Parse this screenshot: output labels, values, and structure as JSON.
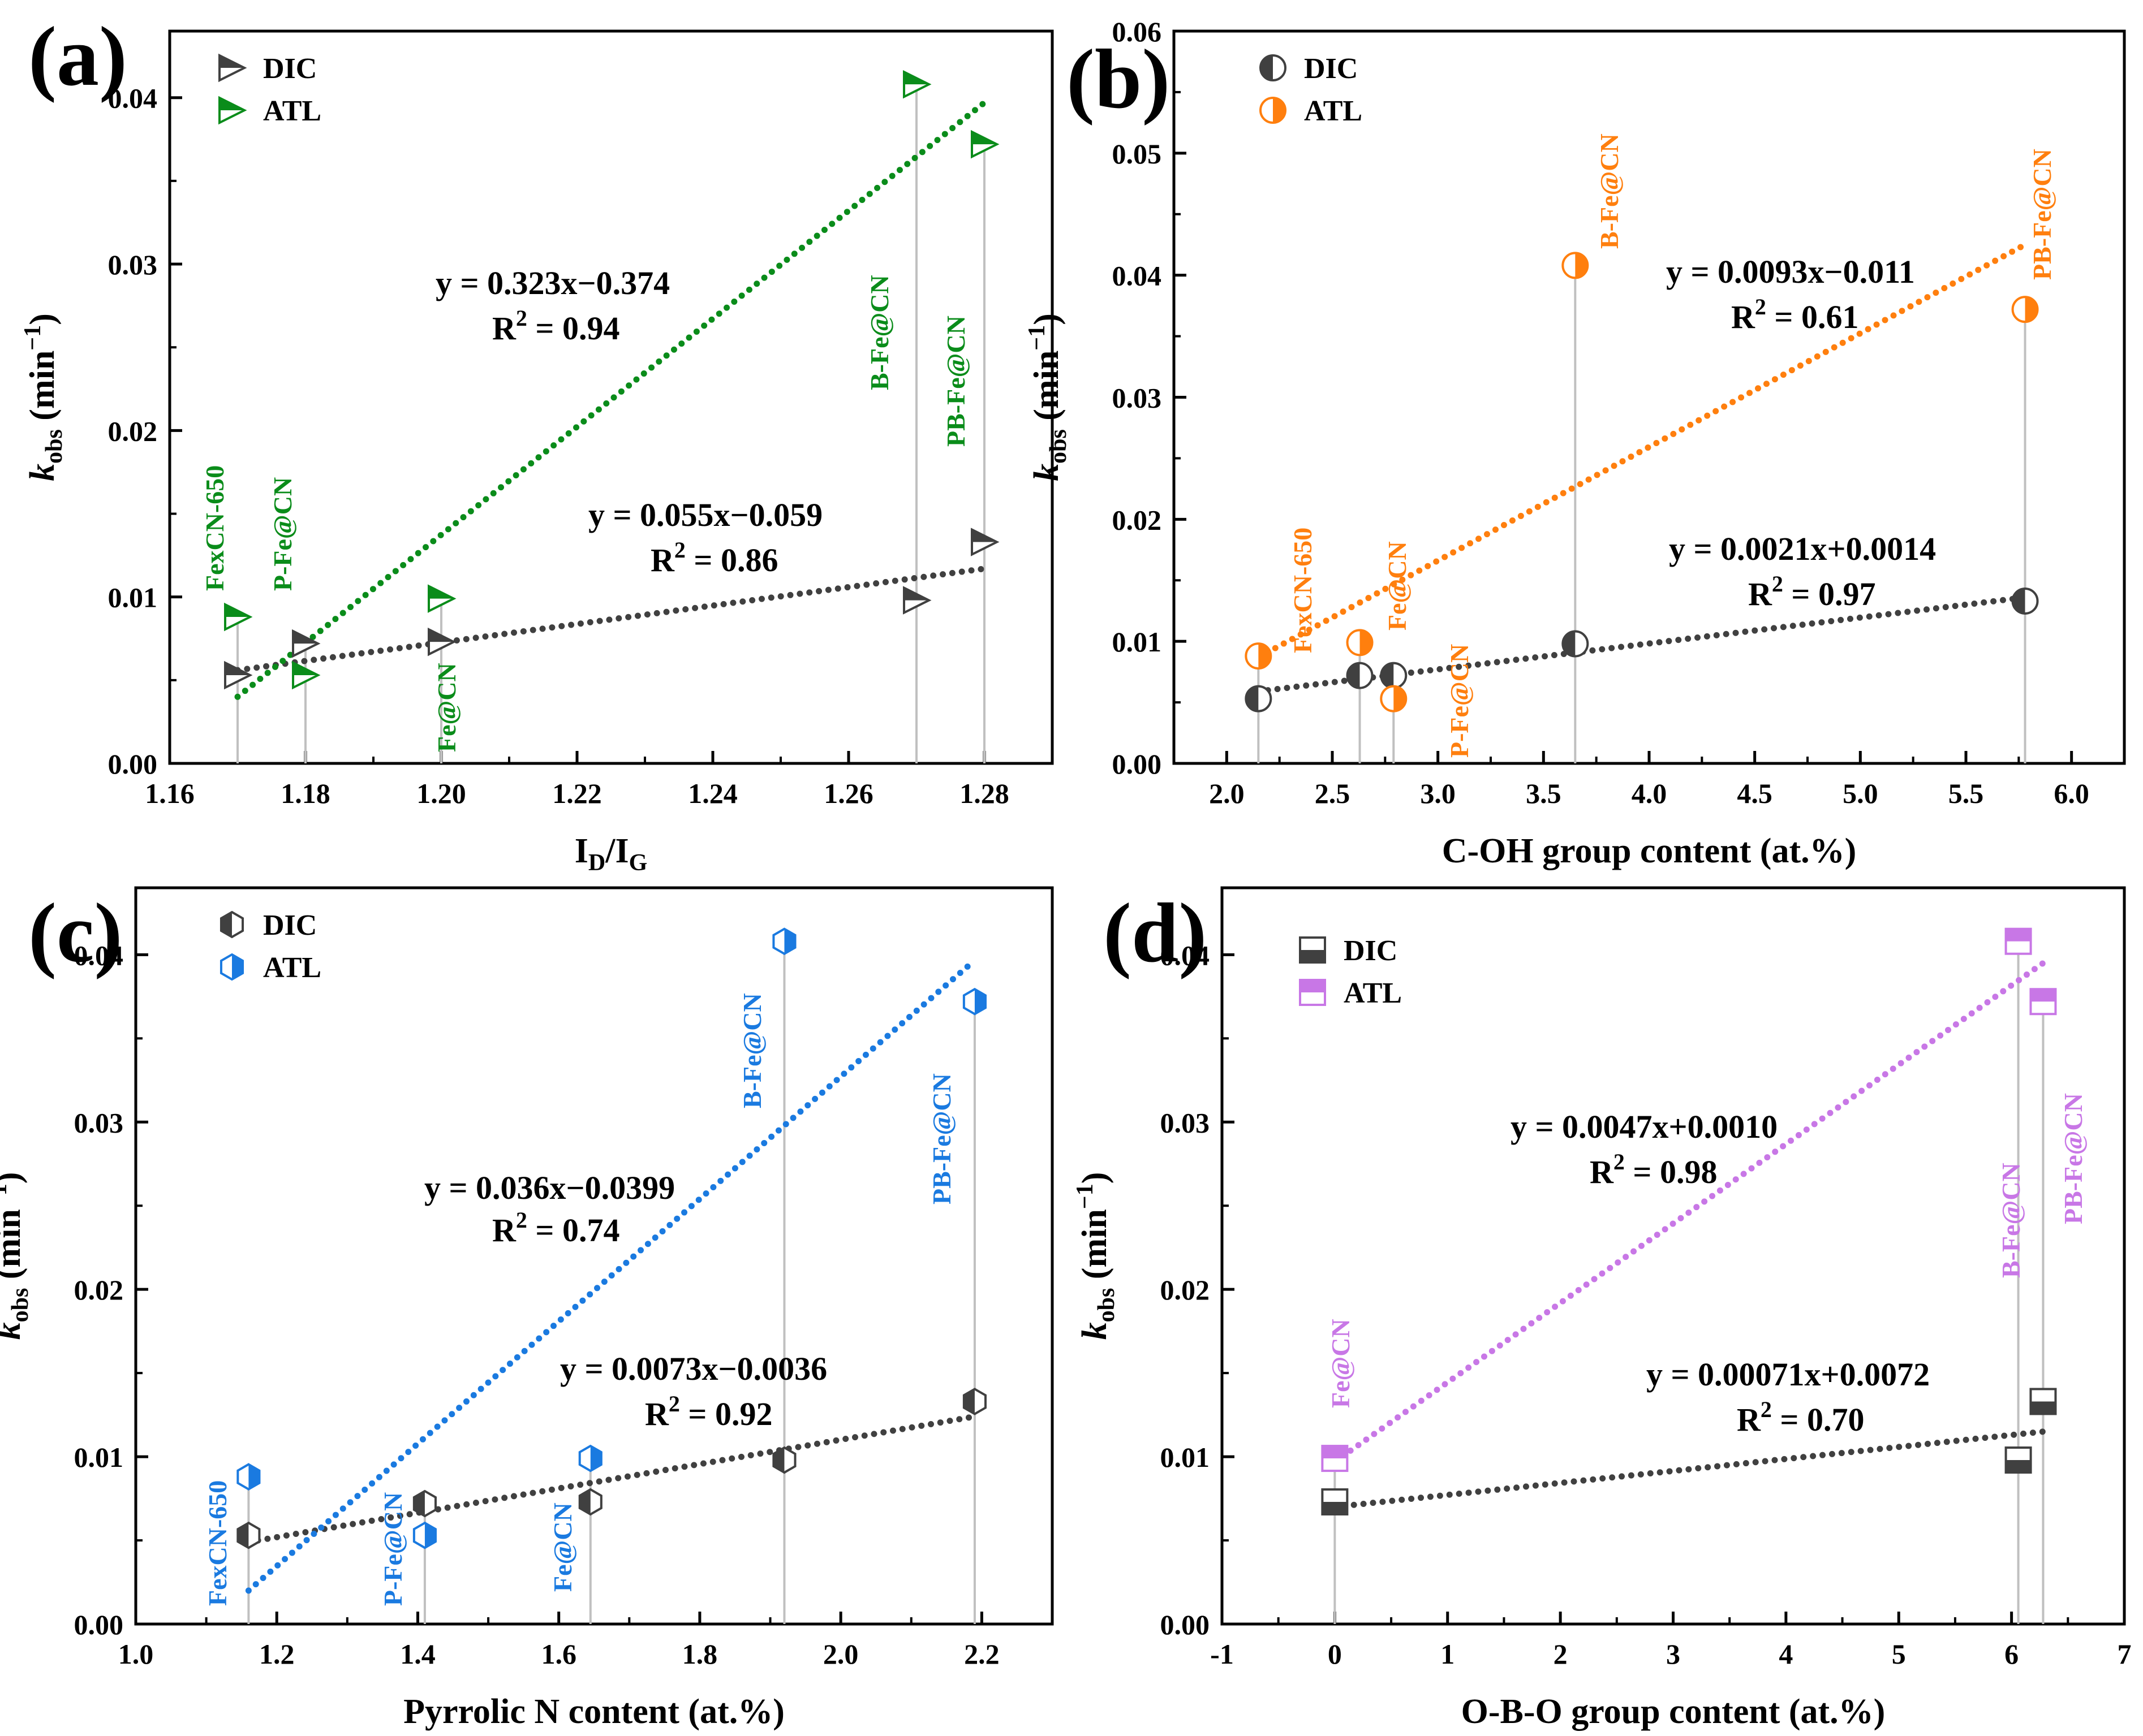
{
  "colors": {
    "DIC": "#404040",
    "ATL_a": "#0a8c1a",
    "ATL_b": "#ff7f0e",
    "ATL_c": "#1a7ae0",
    "ATL_d": "#c877e6",
    "stem": "#c0c0c0",
    "axis": "#000000"
  },
  "chart_data": [
    {
      "panel": "(a)",
      "type": "scatter",
      "xlabel_main": "I",
      "xlabel_sub1": "D",
      "xlabel_mid": "/I",
      "xlabel_sub2": "G",
      "ylabel_main": "k",
      "ylabel_sub": "obs",
      "ylabel_unit": " (min",
      "ylabel_sup": "−1",
      "ylabel_close": ")",
      "xlim": [
        1.16,
        1.29
      ],
      "ylim": [
        0,
        0.044
      ],
      "xticks": [
        1.16,
        1.18,
        1.2,
        1.22,
        1.24,
        1.26,
        1.28
      ],
      "xtick_labels": [
        "1.16",
        "1.18",
        "1.20",
        "1.22",
        "1.24",
        "1.26",
        "1.28"
      ],
      "yticks": [
        0,
        0.01,
        0.02,
        0.03,
        0.04
      ],
      "ytick_labels": [
        "0.00",
        "0.01",
        "0.02",
        "0.03",
        "0.04"
      ],
      "marker": "triangle",
      "legend": [
        "DIC",
        "ATL"
      ],
      "series": [
        {
          "name": "DIC",
          "x": [
            1.17,
            1.18,
            1.2,
            1.27,
            1.28
          ],
          "y": [
            0.0053,
            0.0072,
            0.0073,
            0.0098,
            0.0133
          ]
        },
        {
          "name": "ATL",
          "x": [
            1.17,
            1.18,
            1.2,
            1.27,
            1.28
          ],
          "y": [
            0.0088,
            0.0053,
            0.0099,
            0.0408,
            0.0372
          ]
        }
      ],
      "fits": [
        {
          "series": "DIC",
          "x": [
            1.17,
            1.28
          ],
          "y": [
            0.0056,
            0.0117
          ]
        },
        {
          "series": "ATL",
          "x": [
            1.17,
            1.28
          ],
          "y": [
            0.004,
            0.0397
          ]
        }
      ],
      "equations": [
        {
          "eq": "y = 0.323x−0.374",
          "r2_lead": "R",
          "r2_sup": "2",
          "r2_rest": " = 0.94",
          "color": "black"
        },
        {
          "eq": "y = 0.055x−0.059",
          "r2_lead": "R",
          "r2_sup": "2",
          "r2_rest": " = 0.86",
          "color": "black"
        }
      ],
      "labels": [
        "FexCN-650",
        "P-Fe@CN",
        "Fe@CN",
        "B-Fe@CN",
        "PB-Fe@CN"
      ]
    },
    {
      "panel": "(b)",
      "type": "scatter",
      "xlabel": "C-OH group content (at.%)",
      "ylabel_main": "k",
      "ylabel_sub": "obs",
      "ylabel_unit": " (min",
      "ylabel_sup": "−1",
      "ylabel_close": ")",
      "xlim": [
        1.75,
        6.25
      ],
      "ylim": [
        0,
        0.06
      ],
      "xticks": [
        2,
        2.5,
        3,
        3.5,
        4,
        4.5,
        5,
        5.5,
        6
      ],
      "xtick_labels": [
        "2.0",
        "2.5",
        "3.0",
        "3.5",
        "4.0",
        "4.5",
        "5.0",
        "5.5",
        "6.0"
      ],
      "yticks": [
        0,
        0.01,
        0.02,
        0.03,
        0.04,
        0.05,
        0.06
      ],
      "ytick_labels": [
        "0.00",
        "0.01",
        "0.02",
        "0.03",
        "0.04",
        "0.05",
        "0.06"
      ],
      "marker": "circle",
      "legend": [
        "DIC",
        "ATL"
      ],
      "series": [
        {
          "name": "DIC",
          "x": [
            2.15,
            2.63,
            2.79,
            3.65,
            5.78
          ],
          "y": [
            0.0053,
            0.0072,
            0.0072,
            0.0098,
            0.0133
          ]
        },
        {
          "name": "ATL",
          "x": [
            2.15,
            2.63,
            2.79,
            3.65,
            5.78
          ],
          "y": [
            0.0088,
            0.0099,
            0.0053,
            0.0408,
            0.0372
          ]
        }
      ],
      "fits": [
        {
          "series": "DIC",
          "x": [
            2.15,
            5.78
          ],
          "y": [
            0.0059,
            0.0136
          ]
        },
        {
          "series": "ATL",
          "x": [
            2.15,
            5.78
          ],
          "y": [
            0.0087,
            0.0425
          ]
        }
      ],
      "equations": [
        {
          "eq": "y = 0.0093x−0.011",
          "r2_lead": "R",
          "r2_sup": "2",
          "r2_rest": " = 0.61",
          "color": "black"
        },
        {
          "eq": "y = 0.0021x+0.0014",
          "r2_lead": "R",
          "r2_sup": "2",
          "r2_rest": " = 0.97",
          "color": "black"
        }
      ],
      "labels": [
        "FexCN-650",
        "Fe@CN",
        "P-Fe@CN",
        "B-Fe@CN",
        "PB-Fe@CN"
      ]
    },
    {
      "panel": "(c)",
      "type": "scatter",
      "xlabel": "Pyrrolic N content (at.%)",
      "ylabel_main": "k",
      "ylabel_sub": "obs",
      "ylabel_unit": " (min",
      "ylabel_sup": "−1",
      "ylabel_close": ")",
      "xlim": [
        1.0,
        2.3
      ],
      "ylim": [
        0,
        0.044
      ],
      "xticks": [
        1.0,
        1.2,
        1.4,
        1.6,
        1.8,
        2.0,
        2.2
      ],
      "xtick_labels": [
        "1.0",
        "1.2",
        "1.4",
        "1.6",
        "1.8",
        "2.0",
        "2.2"
      ],
      "yticks": [
        0,
        0.01,
        0.02,
        0.03,
        0.04
      ],
      "ytick_labels": [
        "0.00",
        "0.01",
        "0.02",
        "0.03",
        "0.04"
      ],
      "marker": "hexagon",
      "legend": [
        "DIC",
        "ATL"
      ],
      "series": [
        {
          "name": "DIC",
          "x": [
            1.16,
            1.41,
            1.645,
            1.92,
            2.19
          ],
          "y": [
            0.0053,
            0.0072,
            0.0073,
            0.0098,
            0.0133
          ]
        },
        {
          "name": "ATL",
          "x": [
            1.16,
            1.41,
            1.645,
            1.92,
            2.19
          ],
          "y": [
            0.0088,
            0.0053,
            0.0099,
            0.0408,
            0.0372
          ]
        }
      ],
      "fits": [
        {
          "series": "DIC",
          "x": [
            1.16,
            2.19
          ],
          "y": [
            0.0049,
            0.0124
          ]
        },
        {
          "series": "ATL",
          "x": [
            1.16,
            2.18
          ],
          "y": [
            0.002,
            0.0393
          ]
        }
      ],
      "equations": [
        {
          "eq": "y = 0.036x−0.0399",
          "r2_lead": "R",
          "r2_sup": "2",
          "r2_rest": " = 0.74",
          "color": "black"
        },
        {
          "eq": "y = 0.0073x−0.0036",
          "r2_lead": "R",
          "r2_sup": "2",
          "r2_rest": " = 0.92",
          "color": "black"
        }
      ],
      "labels": [
        "FexCN-650",
        "P-Fe@CN",
        "Fe@CN",
        "B-Fe@CN",
        "PB-Fe@CN"
      ]
    },
    {
      "panel": "(d)",
      "type": "scatter",
      "xlabel": "O-B-O group content (at.%)",
      "ylabel_main": "k",
      "ylabel_sub": "obs",
      "ylabel_unit": " (min",
      "ylabel_sup": "−1",
      "ylabel_close": ")",
      "xlim": [
        -1,
        7
      ],
      "ylim": [
        0,
        0.044
      ],
      "xticks": [
        -1,
        0,
        1,
        2,
        3,
        4,
        5,
        6,
        7
      ],
      "xtick_labels": [
        "-1",
        "0",
        "1",
        "2",
        "3",
        "4",
        "5",
        "6",
        "7"
      ],
      "yticks": [
        0,
        0.01,
        0.02,
        0.03,
        0.04
      ],
      "ytick_labels": [
        "0.00",
        "0.01",
        "0.02",
        "0.03",
        "0.04"
      ],
      "marker": "square",
      "legend": [
        "DIC",
        "ATL"
      ],
      "series": [
        {
          "name": "DIC",
          "x": [
            0,
            6.06,
            6.28
          ],
          "y": [
            0.0073,
            0.0098,
            0.0133
          ]
        },
        {
          "name": "ATL",
          "x": [
            0,
            6.06,
            6.28
          ],
          "y": [
            0.0099,
            0.0408,
            0.0372
          ]
        }
      ],
      "fits": [
        {
          "series": "DIC",
          "x": [
            0,
            6.28
          ],
          "y": [
            0.007,
            0.0115
          ]
        },
        {
          "series": "ATL",
          "x": [
            0,
            6.28
          ],
          "y": [
            0.0097,
            0.0395
          ]
        }
      ],
      "equations": [
        {
          "eq": "y = 0.0047x+0.0010",
          "r2_lead": "R",
          "r2_sup": "2",
          "r2_rest": " = 0.98",
          "color": "black"
        },
        {
          "eq": "y = 0.00071x+0.0072",
          "r2_lead": "R",
          "r2_sup": "2",
          "r2_rest": " = 0.70",
          "color": "black"
        }
      ],
      "labels": [
        "Fe@CN",
        "B-Fe@CN",
        "PB-Fe@CN"
      ]
    }
  ]
}
